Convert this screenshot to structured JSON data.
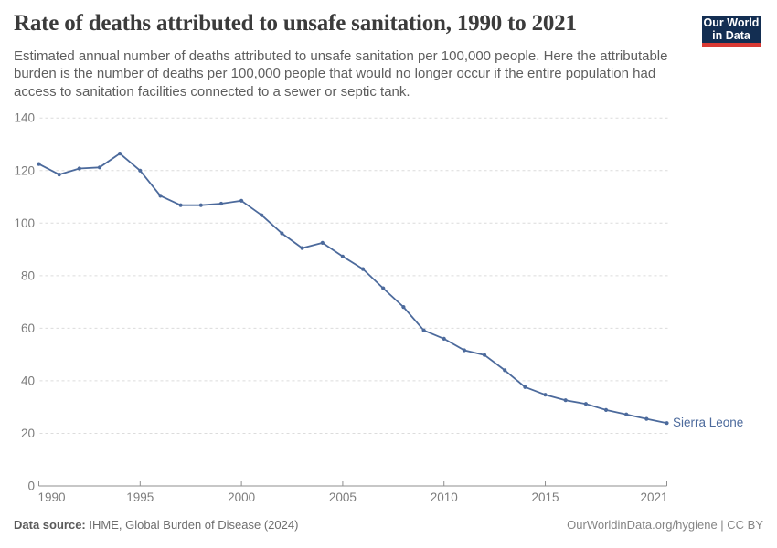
{
  "header": {
    "title": "Rate of deaths attributed to unsafe sanitation, 1990 to 2021",
    "subtitle": "Estimated annual number of deaths attributed to unsafe sanitation per 100,000 people. Here the attributable burden is the number of deaths per 100,000 people that would no longer occur if the entire population had access to sanitation facilities connected to a sewer or septic tank.",
    "logo": {
      "line1": "Our World",
      "line2": "in Data",
      "bg_color": "#132e52",
      "accent_color": "#d93a34"
    }
  },
  "chart_data": {
    "type": "line",
    "title": "Rate of deaths attributed to unsafe sanitation, 1990 to 2021",
    "x": [
      1990,
      1991,
      1992,
      1993,
      1994,
      1995,
      1996,
      1997,
      1998,
      1999,
      2000,
      2001,
      2002,
      2003,
      2004,
      2005,
      2006,
      2007,
      2008,
      2009,
      2010,
      2011,
      2012,
      2013,
      2014,
      2015,
      2016,
      2017,
      2018,
      2019,
      2020,
      2021
    ],
    "series": [
      {
        "name": "Sierra Leone",
        "color": "#4c6a9c",
        "values": [
          122.5,
          118.5,
          120.8,
          121.2,
          126.5,
          120.0,
          110.4,
          106.8,
          106.8,
          107.4,
          108.5,
          103.0,
          96.1,
          90.5,
          92.5,
          87.3,
          82.5,
          75.2,
          68.1,
          59.2,
          56.0,
          51.6,
          49.8,
          44.0,
          37.6,
          34.7,
          32.6,
          31.2,
          28.9,
          27.2,
          25.5,
          23.9
        ]
      }
    ],
    "xlabel": "",
    "ylabel": "",
    "xlim": [
      1990,
      2021
    ],
    "ylim": [
      0,
      140
    ],
    "y_ticks": [
      0,
      20,
      40,
      60,
      80,
      100,
      120,
      140
    ],
    "x_ticks": [
      1990,
      1995,
      2000,
      2005,
      2010,
      2015,
      2021
    ],
    "grid": "horizontal-dashed",
    "legend_position": "end-of-line-label"
  },
  "footer": {
    "source_label": "Data source:",
    "source_text": " IHME, Global Burden of Disease (2024)",
    "credit": "OurWorldinData.org/hygiene | CC BY"
  },
  "colors": {
    "axis": "#8f8f8f",
    "grid": "#dcdcdc",
    "tick_label": "#7d7d7d",
    "title": "#3b3b3b",
    "subtitle": "#5e5e5e"
  }
}
